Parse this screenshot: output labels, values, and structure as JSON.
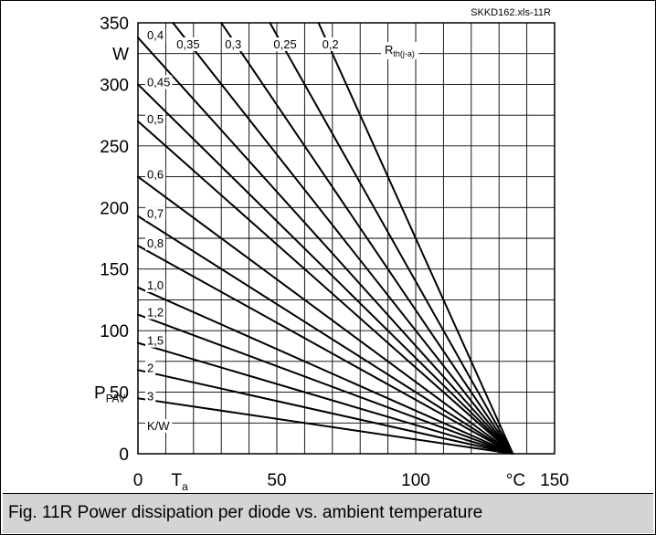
{
  "chart_data": {
    "type": "line",
    "file_tag": "SKKD162.xls-11R",
    "xlim": [
      0,
      150
    ],
    "ylim": [
      0,
      350
    ],
    "x_ticks": [
      "0",
      "50",
      "100",
      "150"
    ],
    "y_ticks": [
      "0",
      "50",
      "100",
      "150",
      "200",
      "250",
      "300",
      "350"
    ],
    "x_axis_symbol": "T",
    "x_axis_symbol_sub": "a",
    "x_unit": "°C",
    "y_axis_symbol": "P",
    "y_axis_symbol_sub": "FAV",
    "y_unit": "W",
    "family_label": "R",
    "family_label_sub": "th(j-a)",
    "rth_unit": "K/W",
    "x_intercept": 135,
    "grid": true,
    "series": [
      {
        "name": "0,2",
        "values": [
          [
            0,
            675
          ],
          [
            135,
            0
          ]
        ]
      },
      {
        "name": "0,25",
        "values": [
          [
            0,
            540
          ],
          [
            135,
            0
          ]
        ]
      },
      {
        "name": "0,3",
        "values": [
          [
            0,
            450
          ],
          [
            135,
            0
          ]
        ]
      },
      {
        "name": "0,35",
        "values": [
          [
            0,
            386
          ],
          [
            135,
            0
          ]
        ]
      },
      {
        "name": "0,4",
        "values": [
          [
            0,
            338
          ],
          [
            135,
            0
          ]
        ]
      },
      {
        "name": "0,45",
        "values": [
          [
            0,
            300
          ],
          [
            135,
            0
          ]
        ]
      },
      {
        "name": "0,5",
        "values": [
          [
            0,
            270
          ],
          [
            135,
            0
          ]
        ]
      },
      {
        "name": "0,6",
        "values": [
          [
            0,
            225
          ],
          [
            135,
            0
          ]
        ]
      },
      {
        "name": "0,7",
        "values": [
          [
            0,
            193
          ],
          [
            135,
            0
          ]
        ]
      },
      {
        "name": "0,8",
        "values": [
          [
            0,
            169
          ],
          [
            135,
            0
          ]
        ]
      },
      {
        "name": "1,0",
        "values": [
          [
            0,
            135
          ],
          [
            135,
            0
          ]
        ]
      },
      {
        "name": "1,2",
        "values": [
          [
            0,
            113
          ],
          [
            135,
            0
          ]
        ]
      },
      {
        "name": "1,5",
        "values": [
          [
            0,
            90
          ],
          [
            135,
            0
          ]
        ]
      },
      {
        "name": "2",
        "values": [
          [
            0,
            68
          ],
          [
            135,
            0
          ]
        ]
      },
      {
        "name": "3",
        "values": [
          [
            0,
            45
          ],
          [
            135,
            0
          ]
        ]
      }
    ]
  },
  "caption": "Fig. 11R Power dissipation per diode vs. ambient temperature"
}
